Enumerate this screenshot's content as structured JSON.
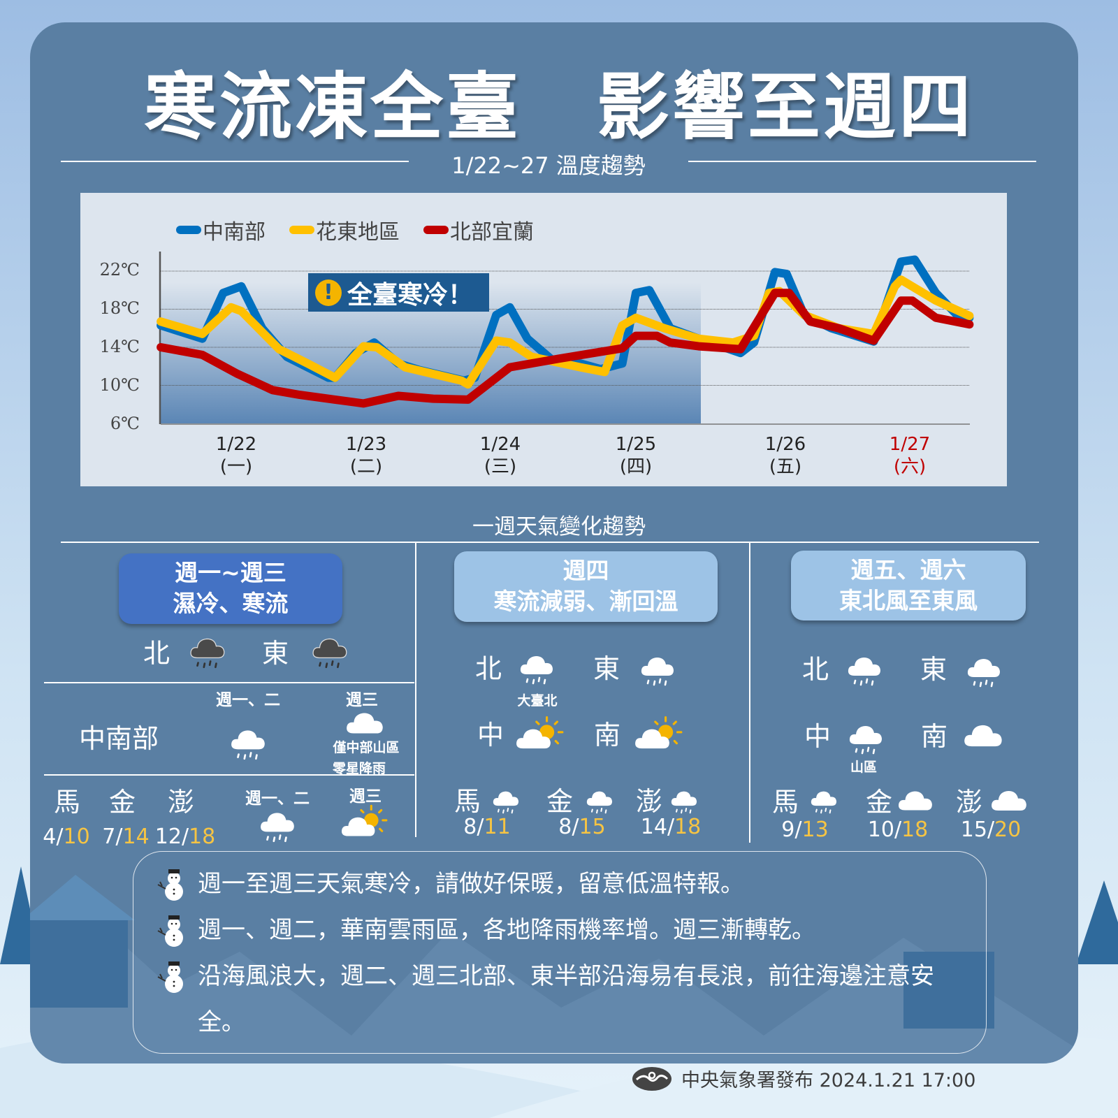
{
  "title": "寒流凍全臺　影響至週四",
  "chart_section_title": "1/22~27 溫度趨勢",
  "chart_data": {
    "type": "line",
    "title": "",
    "xlabel": "",
    "ylabel": "",
    "yticks": [
      "22℃",
      "18℃",
      "14℃",
      "10℃",
      "6℃"
    ],
    "ylim": [
      6,
      23
    ],
    "grid": true,
    "legend": "top-left",
    "categories": [
      {
        "date": "1/22",
        "weekday": "(一)",
        "x": 22
      },
      {
        "date": "1/23",
        "weekday": "(二)",
        "x": 23
      },
      {
        "date": "1/24",
        "weekday": "(三)",
        "x": 24
      },
      {
        "date": "1/25",
        "weekday": "(四)",
        "x": 25
      },
      {
        "date": "1/26",
        "weekday": "(五)",
        "x": 26
      },
      {
        "date": "1/27",
        "weekday": "(六)",
        "x": 27,
        "color": "#c00000"
      }
    ],
    "shaded_range": [
      "1/22",
      "1/25"
    ],
    "annotation": {
      "icon": "exclamation-icon",
      "text": "全臺寒冷！"
    },
    "series": [
      {
        "name": "中南部",
        "color": "#0070c0",
        "points": [
          [
            21.42,
            16.3
          ],
          [
            21.74,
            14.9
          ],
          [
            21.9,
            19.7
          ],
          [
            22.04,
            20.4
          ],
          [
            22.2,
            16.0
          ],
          [
            22.39,
            13.0
          ],
          [
            22.55,
            11.9
          ],
          [
            22.71,
            10.8
          ],
          [
            22.76,
            10.8
          ],
          [
            22.92,
            13.4
          ],
          [
            23.06,
            14.5
          ],
          [
            23.24,
            12.3
          ],
          [
            23.4,
            11.6
          ],
          [
            23.73,
            10.5
          ],
          [
            23.81,
            10.8
          ],
          [
            23.97,
            17.4
          ],
          [
            24.07,
            18.2
          ],
          [
            24.2,
            14.9
          ],
          [
            24.38,
            12.7
          ],
          [
            24.59,
            12.3
          ],
          [
            24.74,
            11.7
          ],
          [
            24.9,
            12.3
          ],
          [
            25.0,
            19.7
          ],
          [
            25.09,
            20.0
          ],
          [
            25.23,
            16.0
          ],
          [
            25.42,
            14.9
          ],
          [
            25.7,
            13.4
          ],
          [
            25.79,
            14.5
          ],
          [
            25.93,
            21.9
          ],
          [
            26.01,
            21.7
          ],
          [
            26.15,
            17.4
          ],
          [
            26.37,
            16.0
          ],
          [
            26.71,
            14.6
          ],
          [
            26.93,
            23.0
          ],
          [
            27.04,
            23.2
          ],
          [
            27.21,
            19.7
          ],
          [
            27.38,
            17.4
          ],
          [
            27.48,
            17.1
          ]
        ]
      },
      {
        "name": "花東地區",
        "color": "#ffc000",
        "points": [
          [
            21.42,
            16.7
          ],
          [
            21.74,
            15.4
          ],
          [
            21.96,
            18.2
          ],
          [
            22.04,
            17.8
          ],
          [
            22.33,
            13.8
          ],
          [
            22.55,
            12.3
          ],
          [
            22.76,
            10.8
          ],
          [
            22.98,
            14.1
          ],
          [
            23.08,
            14.0
          ],
          [
            23.29,
            11.9
          ],
          [
            23.71,
            10.5
          ],
          [
            23.76,
            10.1
          ],
          [
            23.97,
            14.7
          ],
          [
            24.07,
            14.5
          ],
          [
            24.23,
            13.0
          ],
          [
            24.59,
            11.9
          ],
          [
            24.77,
            11.4
          ],
          [
            24.9,
            16.3
          ],
          [
            25.0,
            17.1
          ],
          [
            25.19,
            16.0
          ],
          [
            25.42,
            14.9
          ],
          [
            25.65,
            14.5
          ],
          [
            25.79,
            15.2
          ],
          [
            25.89,
            19.7
          ],
          [
            25.96,
            19.9
          ],
          [
            26.15,
            17.4
          ],
          [
            26.43,
            16.0
          ],
          [
            26.71,
            15.4
          ],
          [
            26.88,
            20.4
          ],
          [
            26.93,
            21.1
          ],
          [
            27.21,
            18.9
          ],
          [
            27.48,
            17.3
          ]
        ]
      },
      {
        "name": "北部宜蘭",
        "color": "#c00000",
        "points": [
          [
            21.42,
            14.0
          ],
          [
            21.74,
            13.2
          ],
          [
            22.01,
            11.2
          ],
          [
            22.28,
            9.5
          ],
          [
            22.49,
            9.0
          ],
          [
            22.76,
            8.5
          ],
          [
            22.98,
            8.1
          ],
          [
            23.24,
            8.9
          ],
          [
            23.5,
            8.6
          ],
          [
            23.76,
            8.5
          ],
          [
            24.07,
            11.9
          ],
          [
            24.43,
            12.8
          ],
          [
            24.9,
            13.9
          ],
          [
            25.0,
            15.2
          ],
          [
            25.14,
            15.2
          ],
          [
            25.23,
            14.5
          ],
          [
            25.42,
            14.1
          ],
          [
            25.7,
            13.8
          ],
          [
            25.93,
            19.7
          ],
          [
            26.03,
            19.7
          ],
          [
            26.2,
            16.7
          ],
          [
            26.43,
            16.0
          ],
          [
            26.71,
            14.7
          ],
          [
            26.93,
            18.9
          ],
          [
            27.02,
            18.9
          ],
          [
            27.21,
            17.1
          ],
          [
            27.48,
            16.4
          ]
        ]
      }
    ]
  },
  "week_section_title": "一週天氣變化趨勢",
  "col1": {
    "header": [
      "週一~週三",
      "濕冷、寒流"
    ],
    "north": {
      "label": "北",
      "icon": "rain-cloud-dark"
    },
    "east": {
      "label": "東",
      "icon": "rain-cloud-dark"
    },
    "central_south": {
      "label": "中南部",
      "day1": "週一、二",
      "icon1": "rain-cloud",
      "day2": "週三",
      "icon2": "cloud",
      "note": [
        "僅中部山區",
        "零星降雨"
      ]
    },
    "islands": [
      {
        "label": "馬",
        "low": "4",
        "high": "10"
      },
      {
        "label": "金",
        "low": "7",
        "high": "14"
      },
      {
        "label": "澎",
        "low": "12",
        "high": "18"
      }
    ],
    "islands_day1": "週一、二",
    "islands_icon1": "rain-cloud",
    "islands_day2": "週三",
    "islands_icon2": "sun-cloud"
  },
  "col2": {
    "header": [
      "週四",
      "寒流減弱、漸回溫"
    ],
    "regions": [
      {
        "label": "北",
        "icon": "rain-cloud",
        "note": "大臺北"
      },
      {
        "label": "東",
        "icon": "rain-cloud"
      },
      {
        "label": "中",
        "icon": "sun-cloud"
      },
      {
        "label": "南",
        "icon": "sun-cloud"
      }
    ],
    "islands": [
      {
        "label": "馬",
        "icon": "rain-cloud",
        "low": "8",
        "high": "11"
      },
      {
        "label": "金",
        "icon": "rain-cloud",
        "low": "8",
        "high": "15"
      },
      {
        "label": "澎",
        "icon": "rain-cloud",
        "low": "14",
        "high": "18"
      }
    ]
  },
  "col3": {
    "header": [
      "週五、週六",
      "東北風至東風"
    ],
    "regions": [
      {
        "label": "北",
        "icon": "rain-cloud"
      },
      {
        "label": "東",
        "icon": "rain-cloud"
      },
      {
        "label": "中",
        "icon": "rain-cloud",
        "note": "山區"
      },
      {
        "label": "南",
        "icon": "cloud"
      }
    ],
    "islands": [
      {
        "label": "馬",
        "icon": "rain-cloud",
        "low": "9",
        "high": "13"
      },
      {
        "label": "金",
        "icon": "cloud",
        "low": "10",
        "high": "18"
      },
      {
        "label": "澎",
        "icon": "cloud",
        "low": "15",
        "high": "20"
      }
    ]
  },
  "notes": [
    "週一至週三天氣寒冷，請做好保暖，留意低溫特報。",
    "週一、週二，華南雲雨區，各地降雨機率增。週三漸轉乾。",
    "沿海風浪大，週二、週三北部、東半部沿海易有長浪，前往海邊注意安全。"
  ],
  "footer": {
    "logo": "cwa-logo",
    "text": "中央氣象署發布 2024.1.21 17:00"
  },
  "colors": {
    "card": "#5a7fa3",
    "header_dark": "#4472c4",
    "header_light": "#9dc3e6",
    "temp_high": "#f6c443"
  }
}
